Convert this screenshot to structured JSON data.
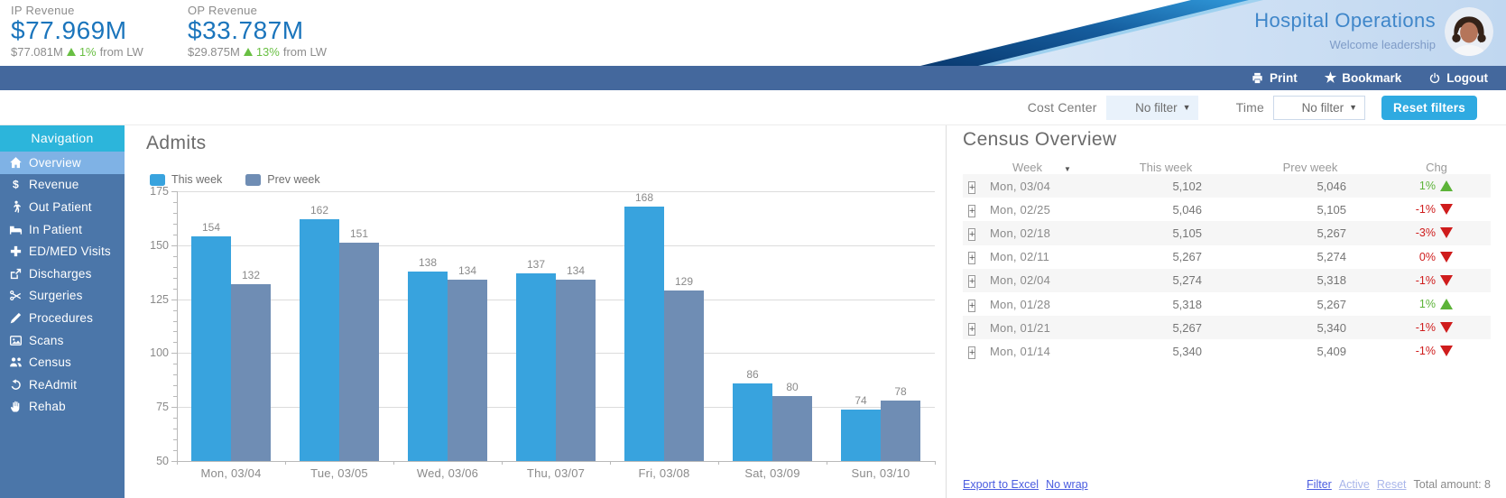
{
  "header": {
    "kpis": [
      {
        "label": "IP Revenue",
        "value": "$77.969M",
        "prev": "$77.081M",
        "delta": "1%",
        "delta_dir": "up",
        "suffix": "from LW"
      },
      {
        "label": "OP Revenue",
        "value": "$33.787M",
        "prev": "$29.875M",
        "delta": "13%",
        "delta_dir": "up",
        "suffix": "from  LW"
      }
    ],
    "title": "Hospital Operations",
    "subtitle": "Welcome leadership"
  },
  "toolbar": {
    "print_label": "Print",
    "bookmark_label": "Bookmark",
    "logout_label": "Logout"
  },
  "filters": {
    "cost_center_label": "Cost Center",
    "cost_center_value": "No filter",
    "time_label": "Time",
    "time_value": "No filter",
    "reset_label": "Reset filters"
  },
  "sidebar": {
    "header": "Navigation",
    "items": [
      {
        "label": "Overview",
        "icon": "home-icon",
        "selected": true
      },
      {
        "label": "Revenue",
        "icon": "dollar-icon",
        "selected": false
      },
      {
        "label": "Out Patient",
        "icon": "walk-icon",
        "selected": false
      },
      {
        "label": "In Patient",
        "icon": "bed-icon",
        "selected": false
      },
      {
        "label": "ED/MED Visits",
        "icon": "cross-icon",
        "selected": false
      },
      {
        "label": "Discharges",
        "icon": "discharge-icon",
        "selected": false
      },
      {
        "label": "Surgeries",
        "icon": "scissors-icon",
        "selected": false
      },
      {
        "label": "Procedures",
        "icon": "pen-icon",
        "selected": false
      },
      {
        "label": "Scans",
        "icon": "scan-icon",
        "selected": false
      },
      {
        "label": "Census",
        "icon": "people-icon",
        "selected": false
      },
      {
        "label": "ReAdmit",
        "icon": "undo-icon",
        "selected": false
      },
      {
        "label": "Rehab",
        "icon": "hand-icon",
        "selected": false
      }
    ]
  },
  "chart_data": {
    "type": "bar",
    "title": "Admits",
    "categories": [
      "Mon, 03/04",
      "Tue, 03/05",
      "Wed, 03/06",
      "Thu, 03/07",
      "Fri, 03/08",
      "Sat, 03/09",
      "Sun, 03/10"
    ],
    "series": [
      {
        "name": "This week",
        "color": "#38a3de",
        "values": [
          154,
          162,
          138,
          137,
          168,
          86,
          74
        ]
      },
      {
        "name": "Prev week",
        "color": "#6f8db4",
        "values": [
          132,
          151,
          134,
          134,
          129,
          80,
          78
        ]
      }
    ],
    "xlabel": "",
    "ylabel": "",
    "ylim": [
      50,
      175
    ],
    "yticks": [
      175,
      150,
      125,
      100,
      75,
      50
    ],
    "grid": true,
    "legend_position": "top-left",
    "bar_value_labels": true
  },
  "census": {
    "title": "Census Overview",
    "columns": [
      "Week",
      "This week",
      "Prev week",
      "Chg"
    ],
    "rows": [
      {
        "week": "Mon, 03/04",
        "this_week": "5,102",
        "prev_week": "5,046",
        "chg": "1%",
        "dir": "up"
      },
      {
        "week": "Mon, 02/25",
        "this_week": "5,046",
        "prev_week": "5,105",
        "chg": "-1%",
        "dir": "down"
      },
      {
        "week": "Mon, 02/18",
        "this_week": "5,105",
        "prev_week": "5,267",
        "chg": "-3%",
        "dir": "down"
      },
      {
        "week": "Mon, 02/11",
        "this_week": "5,267",
        "prev_week": "5,274",
        "chg": "0%",
        "dir": "down"
      },
      {
        "week": "Mon, 02/04",
        "this_week": "5,274",
        "prev_week": "5,318",
        "chg": "-1%",
        "dir": "down"
      },
      {
        "week": "Mon, 01/28",
        "this_week": "5,318",
        "prev_week": "5,267",
        "chg": "1%",
        "dir": "up"
      },
      {
        "week": "Mon, 01/21",
        "this_week": "5,267",
        "prev_week": "5,340",
        "chg": "-1%",
        "dir": "down"
      },
      {
        "week": "Mon, 01/14",
        "this_week": "5,340",
        "prev_week": "5,409",
        "chg": "-1%",
        "dir": "down"
      }
    ],
    "footer": {
      "export_label": "Export to Excel",
      "no_wrap_label": "No wrap",
      "filter_label": "Filter",
      "active_label": "Active",
      "reset_label": "Reset",
      "total_label": "Total amount: 8"
    }
  },
  "colors": {
    "kpi_blue": "#1b75bc",
    "title_blue": "#3f86c9",
    "toolbar_blue": "#44689d",
    "sidebar_blue": "#4b76a9",
    "nav_teal": "#2cb5db",
    "selected_item_blue": "#7fb2e5",
    "button_blue": "#2faae1",
    "series_this_week": "#38a3de",
    "series_prev_week": "#6f8db4",
    "positive_green": "#5cb338",
    "negative_red": "#cf1c1c",
    "link_blue": "#4a5ce0"
  }
}
